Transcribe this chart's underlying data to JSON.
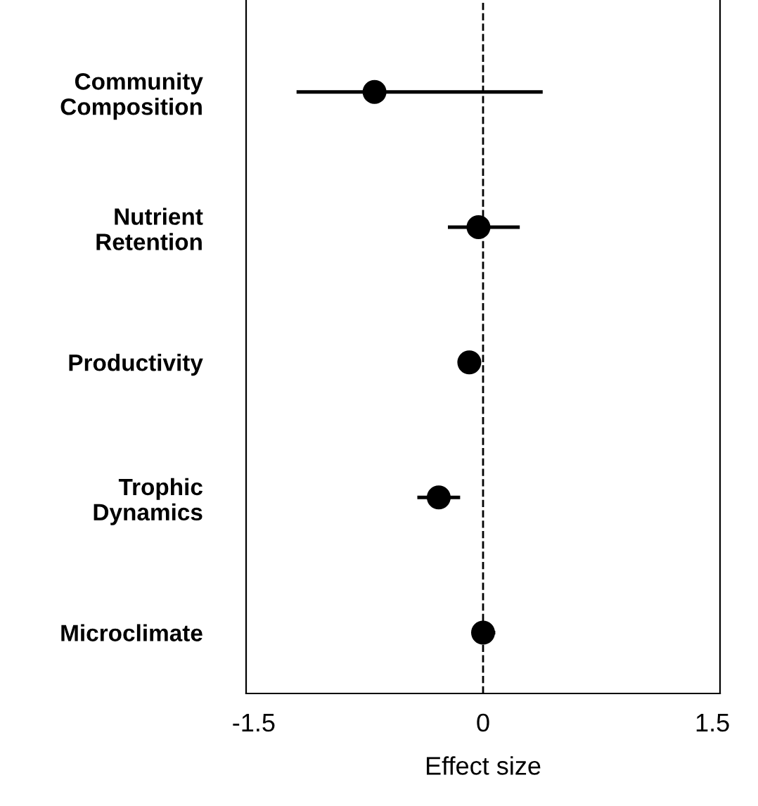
{
  "chart_data": {
    "type": "scatter",
    "xlabel": "Effect size",
    "categories": [
      "Community\nComposition",
      "Nutrient\nRetention",
      "Productivity",
      "Trophic\nDynamics",
      "Microclimate"
    ],
    "orientation": "horizontal",
    "color": "#000000",
    "values": [
      -0.71,
      -0.03,
      -0.09,
      -0.29,
      0.0
    ],
    "errors": [
      [
        -1.22,
        0.39
      ],
      [
        -0.23,
        0.24
      ],
      null,
      [
        -0.43,
        -0.15
      ],
      [
        -0.06,
        0.08
      ]
    ],
    "xlim": [
      -1.55,
      1.55
    ],
    "xticks": [
      -1.5,
      0,
      1.5
    ],
    "ref_lines": [
      {
        "axis": "x",
        "value": 0,
        "line_style": "dashed",
        "color": "#000000"
      }
    ],
    "marker": "circle",
    "grid": false,
    "legend": false
  }
}
